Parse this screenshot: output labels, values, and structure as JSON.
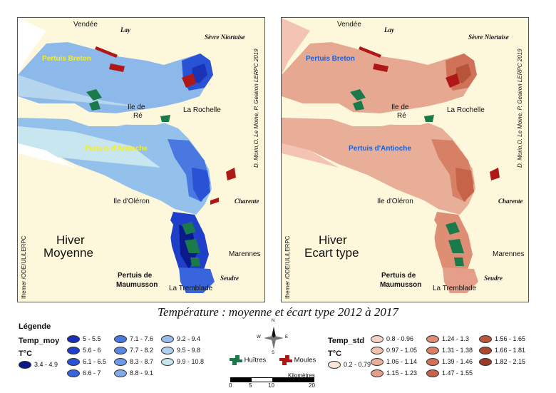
{
  "left_map": {
    "places": {
      "vendee": "Vendée",
      "lay": "Lay",
      "sevre": "Sèvre Niortaise",
      "breton": "Pertuis Breton",
      "ilede": "Ile de",
      "re": "Ré",
      "larochelle": "La Rochelle",
      "antioche": "Pertuis d'Antioche",
      "oleron": "Ile d'Oléron",
      "charente": "Charente",
      "marennes": "Marennes",
      "maum1": "Pertuis de",
      "maum2": "Maumusson",
      "tremblade": "La Tremblade",
      "seudre": "Seudre"
    },
    "title1": "Hiver",
    "title2": "Moyenne",
    "credit_left": "Ifremer /ODE/UL/LERPC",
    "credit_right": "D. Morin,O. Le Moine, P. Geairon  LERPC 2019"
  },
  "right_map": {
    "places": {
      "vendee": "Vendée",
      "lay": "Lay",
      "sevre": "Sèvre Niortaise",
      "breton": "Pertuis Breton",
      "ilede": "Ile de",
      "re": "Ré",
      "larochelle": "La Rochelle",
      "antioche": "Pertuis d'Antioche",
      "oleron": "Ile d'Oléron",
      "charente": "Charente",
      "marennes": "Marennes",
      "maum1": "Pertuis de",
      "maum2": "Maumusson",
      "tremblade": "La Tremblade",
      "seudre": "Seudre"
    },
    "title1": "Hiver",
    "title2": "Ecart type",
    "credit_left": "Ifremer /ODE/UL/LERPC",
    "credit_right": "D. Morin,O. Le Moine, P. Geairon  LERPC 2019"
  },
  "figure_title": "Température : moyenne et écart type 2012 à 2017",
  "legend": {
    "heading": "Légende",
    "moy_title": "Temp_moy",
    "std_title": "Temp_std",
    "unit": "T°C",
    "moy_classes": [
      {
        "label": "3.4 - 4.9",
        "color": "#0a1a8c"
      },
      {
        "label": "5 - 5.5",
        "color": "#1830b8"
      },
      {
        "label": "5.6 - 6",
        "color": "#1f3fc8"
      },
      {
        "label": "6.1 - 6.5",
        "color": "#2a52d4"
      },
      {
        "label": "6.6 - 7",
        "color": "#3865dc"
      },
      {
        "label": "7.1 - 7.6",
        "color": "#4878e0"
      },
      {
        "label": "7.7 - 8.2",
        "color": "#5888e4"
      },
      {
        "label": "8.3 - 8.7",
        "color": "#6c9ae8"
      },
      {
        "label": "8.8 - 9.1",
        "color": "#80aaea"
      },
      {
        "label": "9.2 - 9.4",
        "color": "#98bcec"
      },
      {
        "label": "9.5 - 9.8",
        "color": "#b0d0ee"
      },
      {
        "label": "9.9 - 10.8",
        "color": "#c8e6f0"
      }
    ],
    "std_classes": [
      {
        "label": "0.2 - 0.79",
        "color": "#fbe6da"
      },
      {
        "label": "0.8 - 0.96",
        "color": "#f6d2c2"
      },
      {
        "label": "0.97 - 1.05",
        "color": "#f0c0ae"
      },
      {
        "label": "1.06 - 1.14",
        "color": "#ebae9a"
      },
      {
        "label": "1.15 - 1.23",
        "color": "#e59e88"
      },
      {
        "label": "1.24 - 1.3",
        "color": "#df8e76"
      },
      {
        "label": "1.31 - 1.38",
        "color": "#d88066"
      },
      {
        "label": "1.39 - 1.46",
        "color": "#d07258"
      },
      {
        "label": "1.47 - 1.55",
        "color": "#c6644a"
      },
      {
        "label": "1.56 - 1.65",
        "color": "#ba563c"
      },
      {
        "label": "1.66 - 1.81",
        "color": "#ad4830"
      },
      {
        "label": "1.82 - 2.15",
        "color": "#9a3a24"
      }
    ],
    "huitres": "Huîtres",
    "moules": "Moules",
    "huitres_color": "#1a7a4a",
    "moules_color": "#b01818",
    "compass": {
      "n": "N",
      "s": "S",
      "e": "E",
      "w": "W"
    },
    "scale": {
      "unit": "Kilomètres",
      "ticks": [
        "0",
        "5",
        "10",
        "20"
      ]
    }
  }
}
